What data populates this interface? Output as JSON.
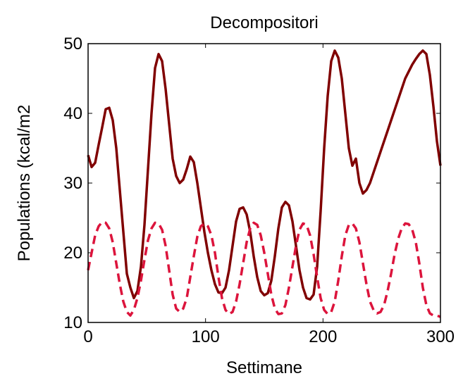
{
  "chart_data": {
    "type": "line",
    "title": "Decompositori",
    "xlabel": "Settimane",
    "ylabel": "Populations (kcal/m2",
    "xlim": [
      0,
      300
    ],
    "ylim": [
      10,
      50
    ],
    "xticks": [
      0,
      100,
      200,
      300
    ],
    "yticks": [
      10,
      20,
      30,
      40,
      50
    ],
    "grid": false,
    "legend": "none",
    "series": [
      {
        "style": "solid",
        "color": "#800000",
        "x": [
          0,
          3,
          6,
          9,
          12,
          15,
          18,
          21,
          24,
          27,
          30,
          33,
          36,
          39,
          42,
          45,
          48,
          51,
          54,
          57,
          60,
          63,
          66,
          69,
          72,
          75,
          78,
          81,
          84,
          87,
          90,
          93,
          96,
          99,
          102,
          105,
          108,
          111,
          114,
          117,
          120,
          123,
          126,
          129,
          132,
          135,
          138,
          141,
          144,
          147,
          150,
          153,
          156,
          159,
          162,
          165,
          168,
          171,
          174,
          177,
          180,
          183,
          186,
          189,
          192,
          195,
          198,
          201,
          204,
          207,
          210,
          213,
          216,
          219,
          222,
          225,
          228,
          231,
          234,
          237,
          240,
          243,
          246,
          249,
          252,
          255,
          258,
          261,
          264,
          267,
          270,
          273,
          276,
          279,
          282,
          285,
          288,
          291,
          294,
          297,
          300
        ],
        "values": [
          34.0,
          32.3,
          32.9,
          35.5,
          38.0,
          40.6,
          40.8,
          39.0,
          35.0,
          29.0,
          23.0,
          17.0,
          15.0,
          13.5,
          14.5,
          18.0,
          24.0,
          32.0,
          40.0,
          46.5,
          48.5,
          47.5,
          43.5,
          38.5,
          33.5,
          31.0,
          30.0,
          30.5,
          32.0,
          33.8,
          33.0,
          30.0,
          26.5,
          23.0,
          20.0,
          17.5,
          15.5,
          14.3,
          14.2,
          15.0,
          17.5,
          21.0,
          24.5,
          26.3,
          26.5,
          25.5,
          23.0,
          19.5,
          16.5,
          14.5,
          13.9,
          14.2,
          16.0,
          19.5,
          23.5,
          26.5,
          27.3,
          26.8,
          24.5,
          21.0,
          17.5,
          15.0,
          13.5,
          13.3,
          14.0,
          18.0,
          26.0,
          35.0,
          42.5,
          47.5,
          49.0,
          48.0,
          45.0,
          40.0,
          35.0,
          32.5,
          33.5,
          30.0,
          28.5,
          29.0,
          30.0,
          31.5,
          33.0,
          34.5,
          36.0,
          37.5,
          39.0,
          40.5,
          42.0,
          43.5,
          45.0,
          46.0,
          47.0,
          47.8,
          48.5,
          49.0,
          48.5,
          45.5,
          41.0,
          36.0,
          32.5
        ]
      },
      {
        "style": "dashed",
        "color": "#dc143c",
        "x": [
          0,
          3,
          6,
          9,
          12,
          15,
          18,
          21,
          24,
          27,
          30,
          33,
          36,
          39,
          42,
          45,
          48,
          51,
          54,
          57,
          60,
          63,
          66,
          69,
          72,
          75,
          78,
          81,
          84,
          87,
          90,
          93,
          96,
          99,
          102,
          105,
          108,
          111,
          114,
          117,
          120,
          123,
          126,
          129,
          132,
          135,
          138,
          141,
          144,
          147,
          150,
          153,
          156,
          159,
          162,
          165,
          168,
          171,
          174,
          177,
          180,
          183,
          186,
          189,
          192,
          195,
          198,
          201,
          204,
          207,
          210,
          213,
          216,
          219,
          222,
          225,
          228,
          231,
          234,
          237,
          240,
          243,
          246,
          249,
          252,
          255,
          258,
          261,
          264,
          267,
          270,
          273,
          276,
          279,
          282,
          285,
          288,
          291,
          294,
          297,
          300
        ],
        "values": [
          17.5,
          20.0,
          22.5,
          23.8,
          24.4,
          24.3,
          23.5,
          21.5,
          18.5,
          15.5,
          13.0,
          11.5,
          11.0,
          11.8,
          13.5,
          16.0,
          19.0,
          21.8,
          23.5,
          24.3,
          24.2,
          23.3,
          21.0,
          17.5,
          14.0,
          12.0,
          11.5,
          12.0,
          13.5,
          16.5,
          19.5,
          22.3,
          23.8,
          24.2,
          23.8,
          22.5,
          20.0,
          16.5,
          13.5,
          11.8,
          11.2,
          11.5,
          13.0,
          15.5,
          18.5,
          21.5,
          23.5,
          24.3,
          24.0,
          22.5,
          20.0,
          17.0,
          14.0,
          12.0,
          11.2,
          11.3,
          12.5,
          15.0,
          18.0,
          21.0,
          23.3,
          24.2,
          24.0,
          22.5,
          19.8,
          16.5,
          13.5,
          11.8,
          11.2,
          11.5,
          13.0,
          16.0,
          19.5,
          22.5,
          24.0,
          24.2,
          23.5,
          21.5,
          18.5,
          15.5,
          13.0,
          11.8,
          11.3,
          11.5,
          12.5,
          14.5,
          17.0,
          19.8,
          22.0,
          23.5,
          24.2,
          24.1,
          23.3,
          21.5,
          18.5,
          15.0,
          12.5,
          11.3,
          11.0,
          11.0,
          10.8
        ]
      }
    ]
  }
}
